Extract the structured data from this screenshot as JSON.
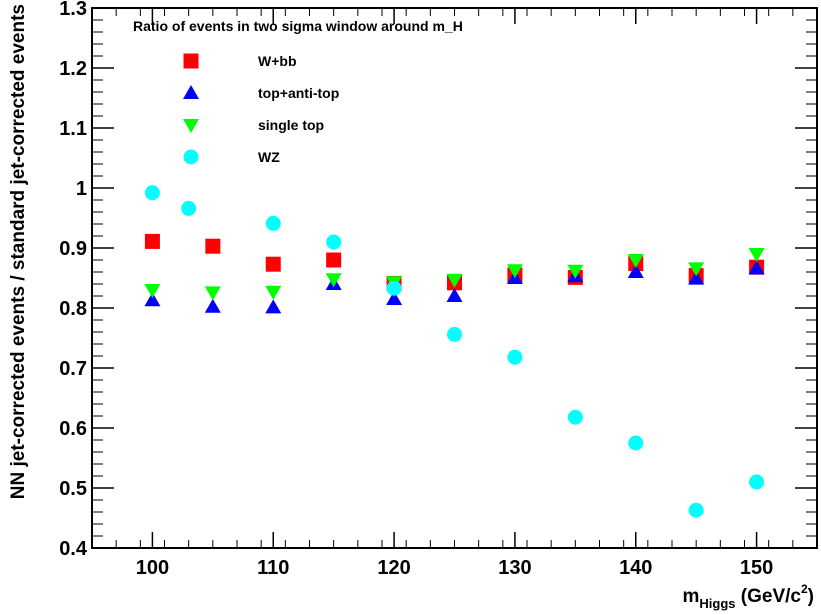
{
  "chart_data": {
    "type": "scatter",
    "title": "Ratio of events in two sigma window around m_H",
    "xlabel": {
      "main": "m",
      "sub": "Higgs",
      "unit_pre": " (GeV/c",
      "sup": "2",
      "unit_post": ")"
    },
    "ylabel": "NN jet-corrected events / standard jet-corrected events",
    "xlim": [
      95,
      155
    ],
    "ylim": [
      0.4,
      1.3
    ],
    "xticks": [
      100,
      110,
      120,
      130,
      140,
      150
    ],
    "xtick_labels": [
      "100",
      "110",
      "120",
      "130",
      "140",
      "150"
    ],
    "yticks": [
      0.4,
      0.5,
      0.6,
      0.7,
      0.8,
      0.9,
      1.0,
      1.1,
      1.2,
      1.3
    ],
    "ytick_labels": [
      "0.4",
      "0.5",
      "0.6",
      "0.7",
      "0.8",
      "0.9",
      "1",
      "1.1",
      "1.2",
      "1.3"
    ],
    "grid": false,
    "legend_position": "top-left",
    "series": [
      {
        "name": "W+bb",
        "marker": "square",
        "color": "#ff0000",
        "points": [
          [
            100,
            0.911
          ],
          [
            105,
            0.903
          ],
          [
            110,
            0.873
          ],
          [
            115,
            0.88
          ],
          [
            120,
            0.841
          ],
          [
            125,
            0.842
          ],
          [
            130,
            0.855
          ],
          [
            135,
            0.851
          ],
          [
            140,
            0.874
          ],
          [
            145,
            0.854
          ],
          [
            150,
            0.868
          ]
        ]
      },
      {
        "name": "top+anti-top",
        "marker": "triangle-up",
        "color": "#0000ff",
        "points": [
          [
            100,
            0.813
          ],
          [
            105,
            0.802
          ],
          [
            110,
            0.801
          ],
          [
            115,
            0.84
          ],
          [
            120,
            0.815
          ],
          [
            125,
            0.82
          ],
          [
            130,
            0.85
          ],
          [
            135,
            0.853
          ],
          [
            140,
            0.86
          ],
          [
            145,
            0.849
          ],
          [
            150,
            0.866
          ]
        ]
      },
      {
        "name": "single top",
        "marker": "triangle-down",
        "color": "#00ff00",
        "points": [
          [
            100,
            0.83
          ],
          [
            105,
            0.826
          ],
          [
            110,
            0.827
          ],
          [
            115,
            0.848
          ],
          [
            120,
            0.843
          ],
          [
            125,
            0.847
          ],
          [
            130,
            0.863
          ],
          [
            135,
            0.862
          ],
          [
            140,
            0.88
          ],
          [
            145,
            0.866
          ],
          [
            150,
            0.89
          ]
        ]
      },
      {
        "name": "WZ",
        "marker": "circle",
        "color": "#00ffff",
        "points": [
          [
            100,
            0.992
          ],
          [
            103,
            0.966
          ],
          [
            110,
            0.941
          ],
          [
            115,
            0.91
          ],
          [
            120,
            0.833
          ],
          [
            125,
            0.756
          ],
          [
            130,
            0.718
          ],
          [
            135,
            0.618
          ],
          [
            140,
            0.575
          ],
          [
            145,
            0.463
          ],
          [
            150,
            0.51
          ]
        ]
      }
    ]
  }
}
